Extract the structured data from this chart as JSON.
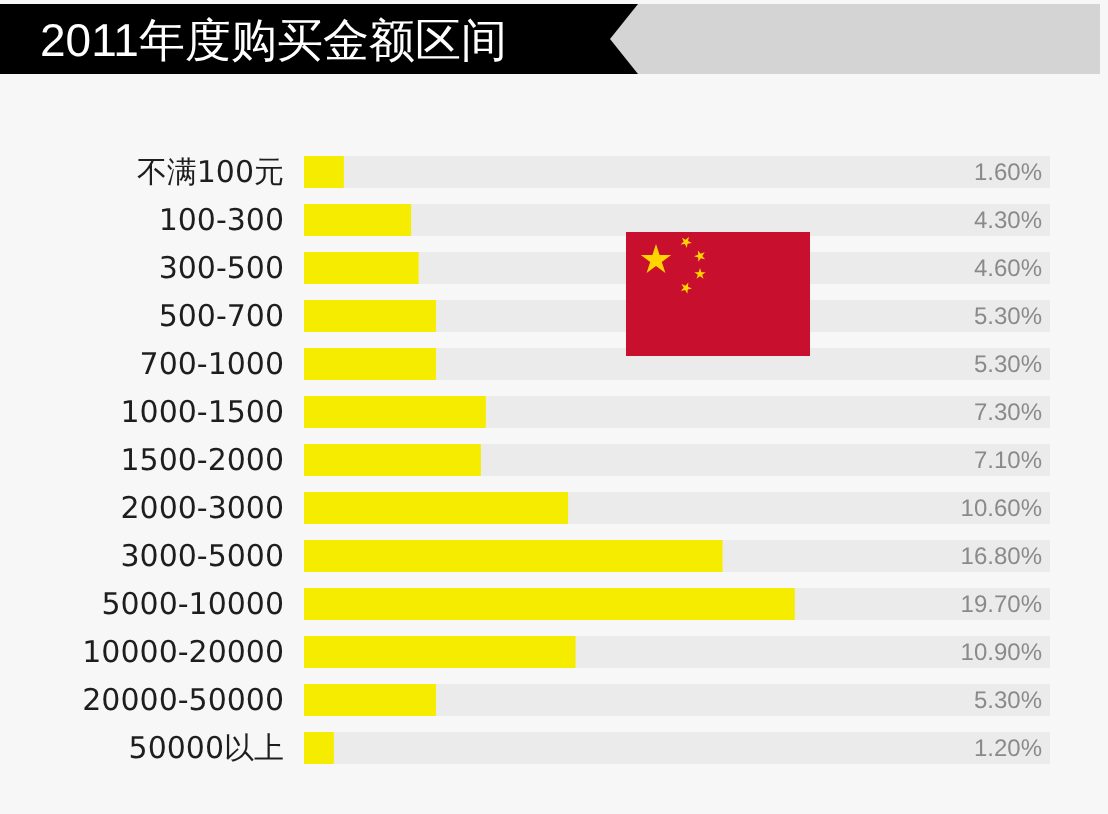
{
  "chart_data": {
    "type": "bar",
    "orientation": "horizontal",
    "title": "2011年度购买金额区间",
    "categories": [
      "不满100元",
      "100-300",
      "300-500",
      "500-700",
      "700-1000",
      "1000-1500",
      "1500-2000",
      "2000-3000",
      "3000-5000",
      "5000-10000",
      "10000-20000",
      "20000-50000",
      "50000以上"
    ],
    "values": [
      1.6,
      4.3,
      4.6,
      5.3,
      5.3,
      7.3,
      7.1,
      10.6,
      16.8,
      19.7,
      10.9,
      5.3,
      1.2
    ],
    "value_labels": [
      "1.60%",
      "4.30%",
      "4.60%",
      "5.30%",
      "5.30%",
      "7.30%",
      "7.10%",
      "10.60%",
      "16.80%",
      "19.70%",
      "10.90%",
      "5.30%",
      "1.20%"
    ],
    "color": "#f6ec00"
  }
}
